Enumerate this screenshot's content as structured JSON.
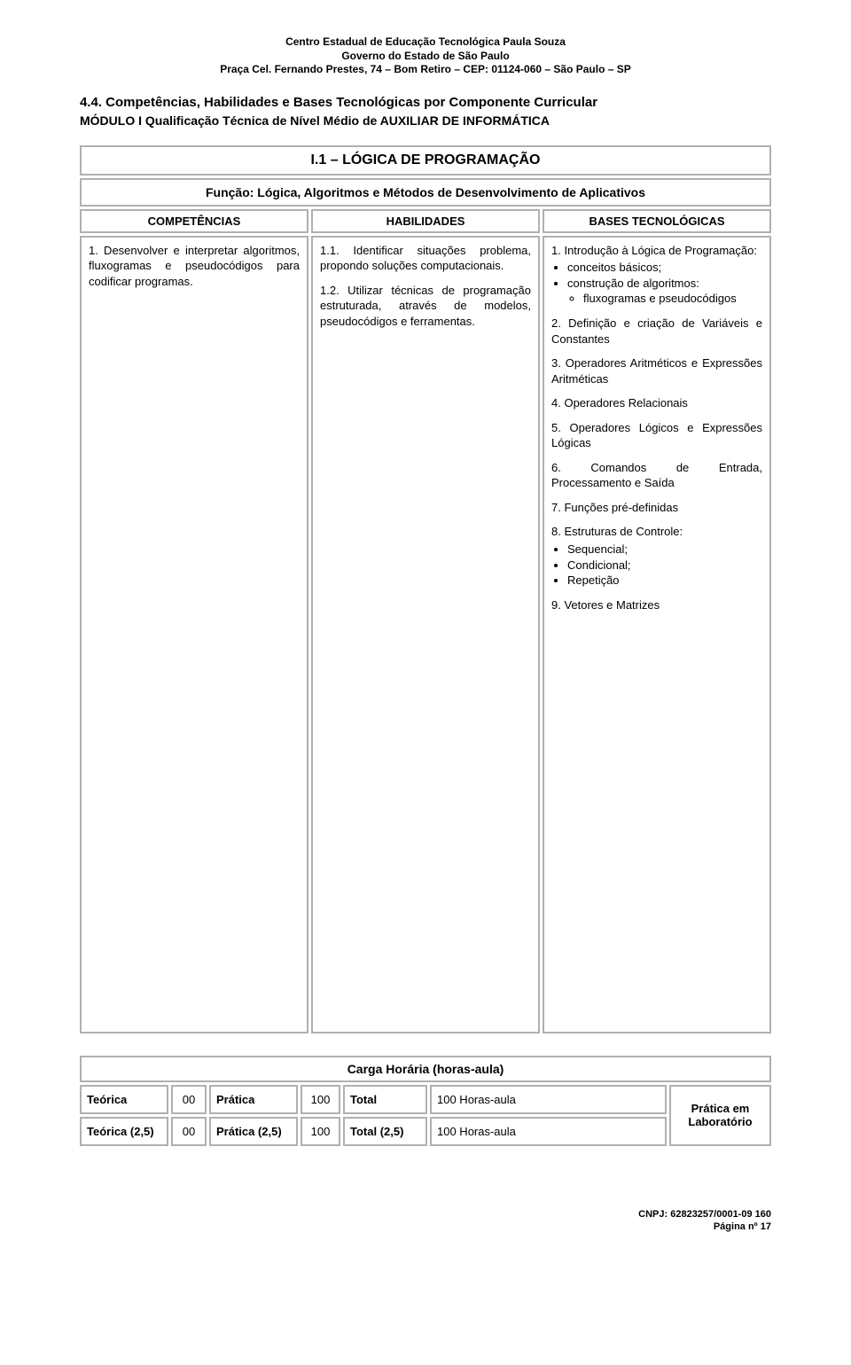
{
  "header": {
    "line1": "Centro Estadual de Educação Tecnológica Paula Souza",
    "line2": "Governo do Estado de São Paulo",
    "line3": "Praça Cel. Fernando Prestes, 74 – Bom Retiro – CEP: 01124-060 – São Paulo – SP"
  },
  "section_number_title": "4.4.    Competências, Habilidades e Bases Tecnológicas por Componente Curricular",
  "module_title": "MÓDULO I Qualificação Técnica de Nível Médio de AUXILIAR DE INFORMÁTICA",
  "course_title": "I.1 – LÓGICA DE PROGRAMAÇÃO",
  "function_text": "Função: Lógica, Algoritmos e Métodos de Desenvolvimento de Aplicativos",
  "col_heads": {
    "c1": "COMPETÊNCIAS",
    "c2": "HABILIDADES",
    "c3": "BASES TECNOLÓGICAS"
  },
  "competencias": {
    "p1": "1. Desenvolver e interpretar algoritmos, fluxogramas e pseudocódigos para codificar programas."
  },
  "habilidades": {
    "p1": "1.1. Identificar situações problema, propondo soluções computacionais.",
    "p2": "1.2. Utilizar técnicas de programação estruturada, através de modelos, pseudocódigos e ferramentas."
  },
  "bases": {
    "b1_title": "1. Introdução à Lógica de Programação:",
    "b1_li1": "conceitos básicos;",
    "b1_li2": "construção de algoritmos:",
    "b1_li2_sub": "fluxogramas e pseudocódigos",
    "b2": "2. Definição e criação de Variáveis e Constantes",
    "b3": "3. Operadores Aritméticos e Expressões Aritméticas",
    "b4": "4. Operadores Relacionais",
    "b5": "5. Operadores Lógicos e Expressões Lógicas",
    "b6": "6. Comandos de Entrada, Processamento e Saída",
    "b7": "7. Funções pré-definidas",
    "b8_title": "8. Estruturas de Controle:",
    "b8_li1": "Sequencial;",
    "b8_li2": "Condicional;",
    "b8_li3": "Repetição",
    "b9": "9. Vetores e Matrizes"
  },
  "carga_title": "Carga Horária (horas-aula)",
  "load": {
    "r1": {
      "c1": "Teórica",
      "c2": "00",
      "c3": "Prática",
      "c4": "100",
      "c5": "Total",
      "c6": "100 Horas-aula"
    },
    "r2": {
      "c1": "Teórica (2,5)",
      "c2": "00",
      "c3": "Prática (2,5)",
      "c4": "100",
      "c5": "Total (2,5)",
      "c6": "100 Horas-aula"
    },
    "right": "Prática em Laboratório"
  },
  "footer": {
    "l1": "CNPJ: 62823257/0001-09 160",
    "l2": "Página nº 17"
  },
  "colors": {
    "border": "#b0b0b0",
    "text": "#000000",
    "background": "#ffffff"
  }
}
